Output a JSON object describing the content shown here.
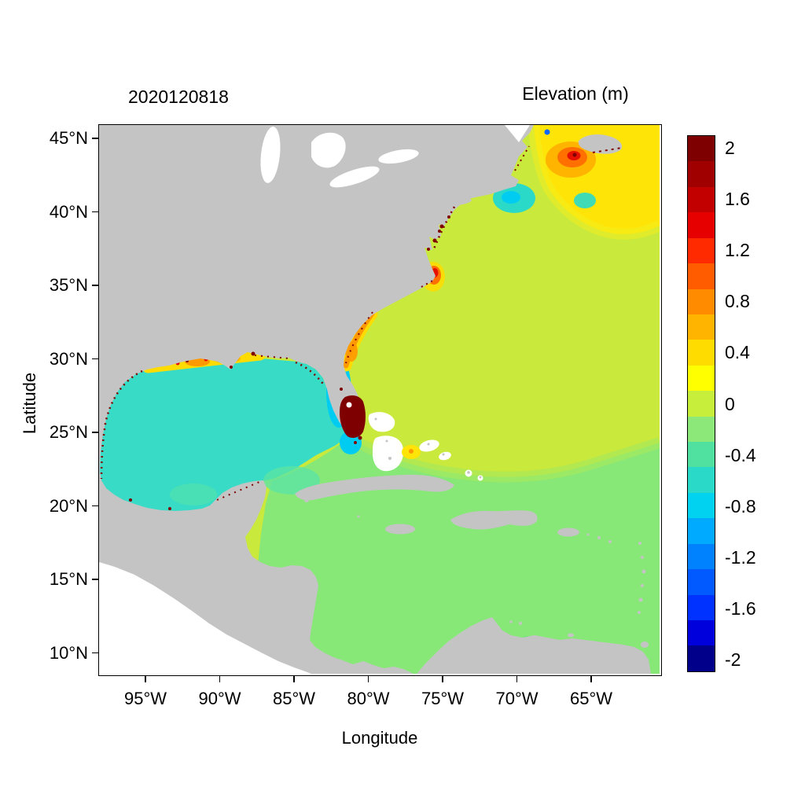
{
  "figure": {
    "date_label": "2020120818",
    "colorbar_title": "Elevation (m)",
    "xlabel": "Longitude",
    "ylabel": "Latitude"
  },
  "axes": {
    "x_ticks": [
      {
        "label": "95°W",
        "lon": 95
      },
      {
        "label": "90°W",
        "lon": 90
      },
      {
        "label": "85°W",
        "lon": 85
      },
      {
        "label": "80°W",
        "lon": 80
      },
      {
        "label": "75°W",
        "lon": 75
      },
      {
        "label": "70°W",
        "lon": 70
      },
      {
        "label": "65°W",
        "lon": 65
      }
    ],
    "y_ticks": [
      {
        "label": "45°N",
        "lat": 45
      },
      {
        "label": "40°N",
        "lat": 40
      },
      {
        "label": "35°N",
        "lat": 35
      },
      {
        "label": "30°N",
        "lat": 30
      },
      {
        "label": "25°N",
        "lat": 25
      },
      {
        "label": "20°N",
        "lat": 20
      },
      {
        "label": "15°N",
        "lat": 15
      },
      {
        "label": "10°N",
        "lat": 10
      }
    ]
  },
  "colorbar": {
    "value_min": -2,
    "value_max": 2,
    "block_step": 0.2,
    "ticks": [
      {
        "label": "2",
        "value": 2
      },
      {
        "label": "1.6",
        "value": 1.6
      },
      {
        "label": "1.2",
        "value": 1.2
      },
      {
        "label": "0.8",
        "value": 0.8
      },
      {
        "label": "0.4",
        "value": 0.4
      },
      {
        "label": "0",
        "value": 0
      },
      {
        "label": "-0.4",
        "value": -0.4
      },
      {
        "label": "-0.8",
        "value": -0.8
      },
      {
        "label": "-1.2",
        "value": -1.2
      },
      {
        "label": "-1.6",
        "value": -1.6
      },
      {
        "label": "-2",
        "value": -2
      }
    ],
    "colors_top_to_bottom": [
      "#7F0000",
      "#A00000",
      "#C30000",
      "#E60000",
      "#FF2A00",
      "#FF5C00",
      "#FF8C00",
      "#FFB400",
      "#FFDC00",
      "#FFFF00",
      "#C8EE3C",
      "#8CE878",
      "#50E0A0",
      "#2BD9C8",
      "#00D2F0",
      "#00AAFF",
      "#0082FF",
      "#005AFF",
      "#0032FF",
      "#0000DC",
      "#00008B"
    ]
  },
  "palette": {
    "land": "#C4C4C4",
    "no_data": "#FFFFFF",
    "atlantic": "#C9E93C",
    "yellow": "#FFE408",
    "transition": "#A8E95A",
    "yellow_transition": "#F2EE1E",
    "caribbean": "#87E878",
    "gulf": "#38DCC6",
    "gulf_green": "#5BE3A4",
    "shelf_cyan": "#00CCF2",
    "patch_turquoise": "#2BD9C8",
    "band_yellow": "#FFDC00",
    "orange": "#FF9900",
    "orange_light": "#FFB400",
    "orange_deep": "#FF7000",
    "red": "#E61000",
    "dark_red": "#7F0000",
    "green_spot": "#55E860",
    "blue_speck": "#0064FF"
  },
  "chart_data": {
    "type": "heatmap",
    "title": "2020120818",
    "colorbar_title": "Elevation (m)",
    "xlabel": "Longitude",
    "ylabel": "Latitude",
    "x_tick_labels": [
      "95°W",
      "90°W",
      "85°W",
      "80°W",
      "75°W",
      "70°W",
      "65°W"
    ],
    "y_tick_labels": [
      "45°N",
      "40°N",
      "35°N",
      "30°N",
      "25°N",
      "20°N",
      "15°N",
      "10°N"
    ],
    "x_range_deg_west": [
      98.1,
      60.3
    ],
    "y_range_deg_north": [
      8.5,
      45.9
    ],
    "value_range_m": [
      -2,
      2
    ],
    "colorbar_tick_labels": [
      "2",
      "1.6",
      "1.2",
      "0.8",
      "0.4",
      "0",
      "-0.4",
      "-0.8",
      "-1.2",
      "-1.6",
      "-2"
    ],
    "regions": [
      {
        "name": "Gulf of Mexico basin",
        "approx_value_m": -0.35
      },
      {
        "name": "Open Atlantic (Sargasso / central)",
        "approx_value_m": 0.3
      },
      {
        "name": "Northeast Atlantic corner (top-right)",
        "approx_value_m": 0.5
      },
      {
        "name": "Caribbean Sea",
        "approx_value_m": 0.1
      },
      {
        "name": "Gulf of Maine / Bay of Fundy hotspot",
        "approx_value_m": 1.4
      },
      {
        "name": "Southeast Florida coastal hotspot",
        "approx_value_m": 2.0
      },
      {
        "name": "Cape Hatteras coastal spot",
        "approx_value_m": 1.2
      },
      {
        "name": "Georgia / NE Florida coastal band",
        "approx_value_m": 0.8
      },
      {
        "name": "Louisiana-Texas shelf band",
        "approx_value_m": 0.8
      },
      {
        "name": "West Florida shelf patch",
        "approx_value_m": -0.6
      },
      {
        "name": "South of New England patch",
        "approx_value_m": -0.5
      },
      {
        "name": "South of Nova Scotia patch",
        "approx_value_m": -0.4
      },
      {
        "name": "Florida Straits patch",
        "approx_value_m": -0.6
      },
      {
        "name": "Bahamas yellow spot",
        "approx_value_m": 0.5
      },
      {
        "name": "Coastal flooding speckles (bays, estuaries)",
        "approx_value_m": 2.0
      },
      {
        "name": "Land",
        "value": "no data (gray)"
      },
      {
        "name": "Pacific / outside model domain",
        "value": "no data (white)"
      }
    ]
  }
}
